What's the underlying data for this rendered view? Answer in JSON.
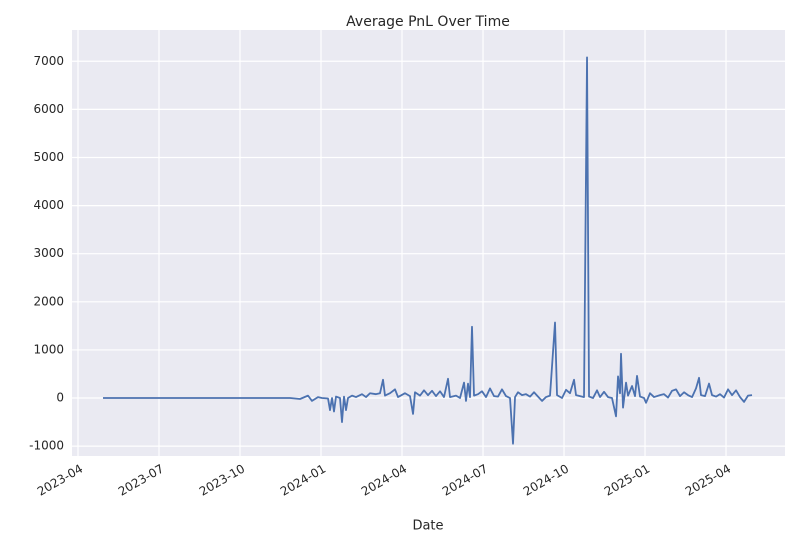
{
  "chart_data": {
    "type": "line",
    "title": "Average PnL Over Time",
    "x_label": "Date",
    "color": "#4c72b0",
    "grid": true,
    "x": [
      2023.3272,
      2023.9043,
      2023.9352,
      2023.9599,
      2023.9722,
      2023.9907,
      2024.0031,
      2024.0216,
      2024.0278,
      2024.034,
      2024.0401,
      2024.0463,
      2024.0586,
      2024.0648,
      2024.071,
      2024.0772,
      2024.0833,
      2024.0957,
      2024.108,
      2024.1265,
      2024.1389,
      2024.1512,
      2024.1698,
      2024.1821,
      2024.1914,
      2024.1975,
      2024.213,
      2024.2284,
      2024.2377,
      2024.2593,
      2024.2747,
      2024.284,
      2024.2901,
      2024.3056,
      2024.3179,
      2024.3302,
      2024.3426,
      2024.3549,
      2024.3673,
      2024.3796,
      2024.392,
      2024.3981,
      2024.4167,
      2024.429,
      2024.4414,
      2024.4475,
      2024.4537,
      2024.4599,
      2024.466,
      2024.4722,
      2024.4846,
      2024.4969,
      2024.5093,
      2024.5216,
      2024.534,
      2024.5463,
      2024.5586,
      2024.571,
      2024.5833,
      2024.5926,
      2024.5988,
      2024.608,
      2024.6204,
      2024.6327,
      2024.6451,
      2024.6574,
      2024.6698,
      2024.6821,
      2024.6944,
      2024.7068,
      2024.7222,
      2024.7284,
      2024.7438,
      2024.7562,
      2024.7685,
      2024.7809,
      2024.787,
      2024.7994,
      2024.8117,
      2024.821,
      2024.8272,
      2024.8395,
      2024.8519,
      2024.8611,
      2024.8735,
      2024.8858,
      2024.8981,
      2024.9105,
      2024.9167,
      2024.9228,
      2024.9259,
      2024.9321,
      2024.9414,
      2024.9475,
      2024.9599,
      2024.9691,
      2024.9753,
      2024.9846,
      2024.9969,
      2025.0031,
      2025.0154,
      2025.0278,
      2025.0463,
      2025.0586,
      2025.071,
      2025.0833,
      2025.0957,
      2025.108,
      2025.1204,
      2025.1327,
      2025.1451,
      2025.1574,
      2025.1667,
      2025.1728,
      2025.1852,
      2025.1975,
      2025.2068,
      2025.2191,
      2025.2315,
      2025.2438,
      2025.2562,
      2025.2685,
      2025.2809,
      2025.2932,
      2025.3056,
      2025.3179,
      2025.3302
    ],
    "values": [
      0,
      0,
      -20,
      50,
      -60,
      20,
      0,
      -10,
      -250,
      0,
      -280,
      30,
      0,
      -500,
      30,
      -250,
      0,
      50,
      20,
      80,
      20,
      100,
      80,
      100,
      380,
      50,
      100,
      180,
      20,
      100,
      40,
      -330,
      120,
      50,
      160,
      60,
      150,
      40,
      140,
      20,
      400,
      20,
      50,
      0,
      320,
      -60,
      300,
      20,
      1480,
      50,
      80,
      140,
      20,
      200,
      40,
      30,
      180,
      40,
      0,
      -950,
      20,
      120,
      60,
      80,
      30,
      120,
      30,
      -60,
      20,
      50,
      1570,
      60,
      0,
      170,
      100,
      380,
      60,
      40,
      20,
      7080,
      30,
      0,
      160,
      20,
      130,
      20,
      0,
      -380,
      450,
      100,
      920,
      -200,
      320,
      50,
      250,
      40,
      460,
      30,
      0,
      -100,
      100,
      20,
      60,
      80,
      10,
      150,
      180,
      40,
      120,
      60,
      20,
      200,
      420,
      60,
      40,
      300,
      60,
      30,
      80,
      10,
      180,
      60,
      160,
      20,
      -80,
      50,
      60
    ],
    "xlim": [
      2023.2315,
      2025.432
    ],
    "xticks": [
      {
        "value": 2023.25,
        "label": "2023-04"
      },
      {
        "value": 2023.5,
        "label": "2023-07"
      },
      {
        "value": 2023.75,
        "label": "2023-10"
      },
      {
        "value": 2024.0,
        "label": "2024-01"
      },
      {
        "value": 2024.25,
        "label": "2024-04"
      },
      {
        "value": 2024.5,
        "label": "2024-07"
      },
      {
        "value": 2024.75,
        "label": "2024-10"
      },
      {
        "value": 2025.0,
        "label": "2025-01"
      },
      {
        "value": 2025.25,
        "label": "2025-04"
      }
    ],
    "ylim": [
      -1205,
      7650
    ],
    "yticks": [
      -1000,
      0,
      1000,
      2000,
      3000,
      4000,
      5000,
      6000,
      7000
    ]
  }
}
